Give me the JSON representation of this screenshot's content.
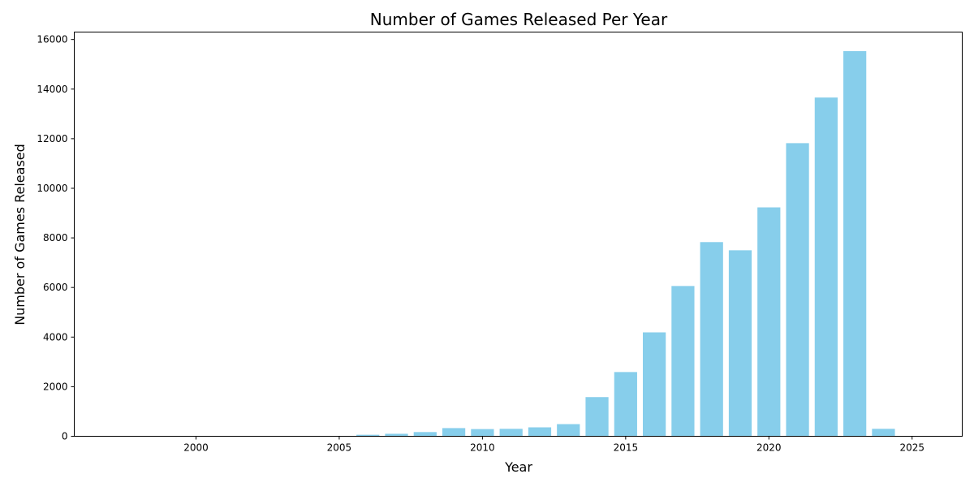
{
  "chart_data": {
    "type": "bar",
    "title": "Number of Games Released Per Year",
    "xlabel": "Year",
    "ylabel": "Number of Games Released",
    "bar_color": "#87ceeb",
    "x": [
      1997,
      1998,
      1999,
      2000,
      2001,
      2002,
      2003,
      2004,
      2005,
      2006,
      2007,
      2008,
      2009,
      2010,
      2011,
      2012,
      2013,
      2014,
      2015,
      2016,
      2017,
      2018,
      2019,
      2020,
      2021,
      2022,
      2023,
      2024,
      2025
    ],
    "values": [
      1,
      0,
      2,
      3,
      2,
      4,
      3,
      5,
      10,
      60,
      100,
      170,
      330,
      290,
      300,
      360,
      490,
      1580,
      2590,
      4190,
      6060,
      7830,
      7500,
      9230,
      11820,
      13660,
      15530,
      300,
      3
    ],
    "xlim": [
      1995.75,
      2026.75
    ],
    "ylim": [
      0,
      16300
    ],
    "xticks": [
      2000,
      2005,
      2010,
      2015,
      2020,
      2025
    ],
    "yticks": [
      0,
      2000,
      4000,
      6000,
      8000,
      10000,
      12000,
      14000,
      16000
    ],
    "xtick_labels": [
      "2000",
      "2005",
      "2010",
      "2015",
      "2020",
      "2025"
    ],
    "ytick_labels": [
      "0",
      "2000",
      "4000",
      "6000",
      "8000",
      "10000",
      "12000",
      "14000",
      "16000"
    ],
    "grid": false,
    "legend": "none"
  }
}
